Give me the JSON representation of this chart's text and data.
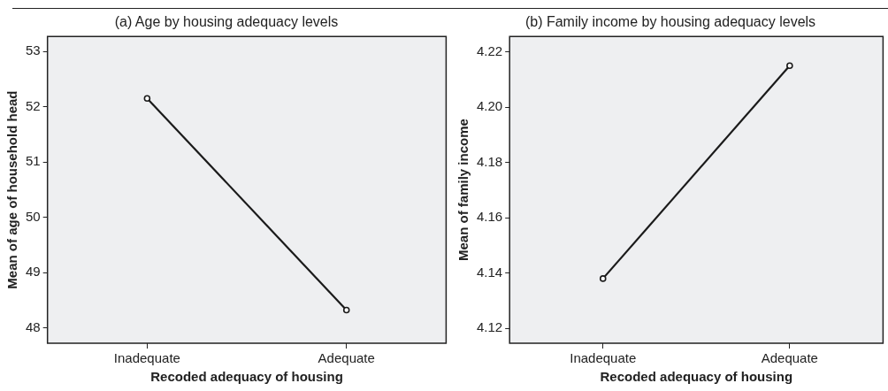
{
  "chart_data": [
    {
      "type": "line",
      "title": "(a) Age by housing adequacy levels",
      "xlabel": "Recoded adequacy of housing",
      "ylabel": "Mean of age of household head",
      "categories": [
        "Inadequate",
        "Adequate"
      ],
      "values": [
        52.15,
        48.32
      ],
      "color": "#1a1a1a",
      "marker": "circle",
      "ylim": [
        47.72,
        53.27
      ],
      "yticks": [
        48,
        49,
        50,
        51,
        52,
        53
      ]
    },
    {
      "type": "line",
      "title": "(b) Family income by housing adequacy levels",
      "xlabel": "Recoded adequacy of housing",
      "ylabel": "Mean of family income",
      "categories": [
        "Inadequate",
        "Adequate"
      ],
      "values": [
        4.138,
        4.215
      ],
      "color": "#1a1a1a",
      "marker": "circle",
      "ylim": [
        4.1146,
        4.2256
      ],
      "yticks": [
        4.12,
        4.14,
        4.16,
        4.18,
        {
          "value": 4.2,
          "label": "4.20"
        },
        4.22
      ]
    }
  ]
}
